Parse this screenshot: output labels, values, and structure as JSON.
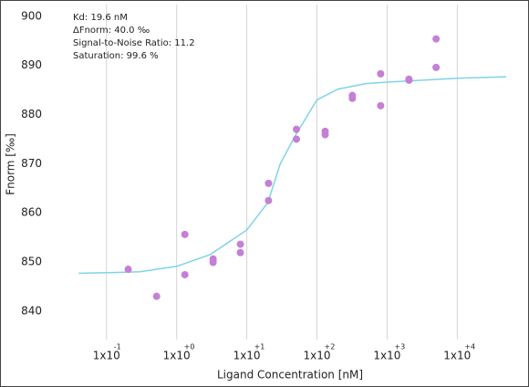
{
  "chart_data": {
    "type": "scatter",
    "annotations": [
      "Kd: 19.6 nM",
      "ΔFnorm: 40.0 ‰",
      "Signal-to-Noise Ratio: 11.2",
      "Saturation: 99.6 %"
    ],
    "x_label": "Ligand Concentration [nM]",
    "y_label": "Fnorm [‰]",
    "log_x": true,
    "grid_x": true,
    "xlim": [
      0.02,
      83000
    ],
    "ylim": [
      834.2,
      902.4
    ],
    "xticks": [
      {
        "value": 0.1,
        "label": "1x10",
        "sup": "-1"
      },
      {
        "value": 1,
        "label": "1x10",
        "sup": "+0"
      },
      {
        "value": 10,
        "label": "1x10",
        "sup": "+1"
      },
      {
        "value": 100,
        "label": "1x10",
        "sup": "+2"
      },
      {
        "value": 1000,
        "label": "1x10",
        "sup": "+3"
      },
      {
        "value": 10000,
        "label": "1x10",
        "sup": "+4"
      }
    ],
    "yticks": [
      840,
      850,
      860,
      870,
      880,
      890,
      900
    ],
    "points": {
      "color": "#c47fd6",
      "x": [
        0.204,
        0.518,
        1.31,
        1.31,
        3.31,
        3.31,
        8.1,
        8.1,
        20.4,
        20.4,
        51,
        51,
        131,
        131,
        320,
        320,
        810,
        810,
        2050,
        2050,
        5000,
        5000
      ],
      "values": [
        848.5,
        843.0,
        855.6,
        847.4,
        850.6,
        849.9,
        853.6,
        851.9,
        862.5,
        866.0,
        877.0,
        875.0,
        876.6,
        875.9,
        883.9,
        883.3,
        888.3,
        881.8,
        887.2,
        887.0,
        895.4,
        889.6
      ]
    },
    "fit": {
      "color": "#7fd3e8",
      "x": [
        0.04,
        0.1,
        0.3,
        1,
        3,
        10,
        20,
        30,
        50,
        100,
        200,
        500,
        1000,
        10000,
        50000
      ],
      "values": [
        847.7,
        847.8,
        848.0,
        849.1,
        851.5,
        856.5,
        862.1,
        870.0,
        875.9,
        883.0,
        885.2,
        886.3,
        886.6,
        887.4,
        887.7
      ]
    }
  }
}
